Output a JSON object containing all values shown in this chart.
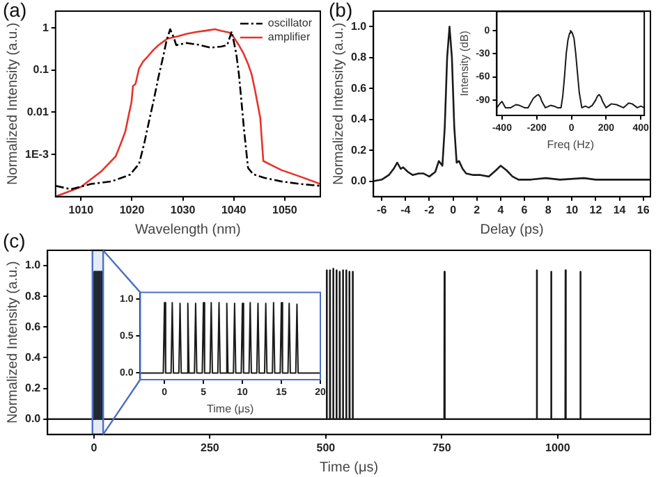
{
  "chart_data": [
    {
      "type": "line",
      "annotations": [
        "(a)"
      ],
      "xlabel": "Wavelength (nm)",
      "ylabel": "Normalized Intensity (a.u.)",
      "log": "y",
      "xlim": [
        1005,
        1057
      ],
      "xticks": [
        1010,
        1020,
        1030,
        1040,
        1050
      ],
      "ylim": [
        0.0001,
        2.5
      ],
      "yticks": [
        {
          "value": 0.001,
          "label": "1E-3"
        },
        0.01,
        0.1,
        1
      ],
      "legend": "top right",
      "marker": "none",
      "series": [
        {
          "name": "oscillator",
          "color": "#000000",
          "line_style": "dashed",
          "x": [
            1005,
            1008,
            1012,
            1016,
            1019.6,
            1021.4,
            1022.4,
            1023.3,
            1024.3,
            1025.2,
            1026.1,
            1026.8,
            1027.5,
            1028.2,
            1028.7,
            1030.7,
            1033,
            1035.4,
            1037.5,
            1038.7,
            1039.6,
            1040.5,
            1041,
            1041.4,
            1042,
            1042.8,
            1043.8,
            1046,
            1049.3,
            1053,
            1057
          ],
          "values": [
            0.00018,
            0.00015,
            0.0002,
            0.00023,
            0.00033,
            0.0006,
            0.0018,
            0.0057,
            0.02,
            0.068,
            0.2,
            0.5,
            0.93,
            0.6,
            0.39,
            0.44,
            0.4,
            0.34,
            0.36,
            0.39,
            0.82,
            0.24,
            0.08,
            0.025,
            0.004,
            0.00048,
            0.00034,
            0.00028,
            0.00023,
            0.0002,
            0.00018
          ]
        },
        {
          "name": "amplifier",
          "color": "#e8322a",
          "line_style": "solid",
          "x": [
            1005,
            1010,
            1014,
            1016.8,
            1017.8,
            1018.7,
            1019.4,
            1019.9,
            1020.2,
            1020.7,
            1021.4,
            1022.2,
            1023.1,
            1024.2,
            1025.2,
            1027,
            1029,
            1030.7,
            1032.6,
            1034.5,
            1036.3,
            1037.6,
            1039.1,
            1040,
            1041,
            1041.9,
            1042.8,
            1043.5,
            1044.2,
            1045.2,
            1045.8,
            1047.5,
            1049.3,
            1053,
            1057
          ],
          "values": [
            0.0001,
            0.00017,
            0.0004,
            0.0009,
            0.0018,
            0.0035,
            0.009,
            0.017,
            0.042,
            0.047,
            0.11,
            0.16,
            0.21,
            0.3,
            0.39,
            0.56,
            0.63,
            0.72,
            0.8,
            0.86,
            0.93,
            0.85,
            0.78,
            0.6,
            0.39,
            0.25,
            0.14,
            0.08,
            0.032,
            0.0074,
            0.0007,
            0.00055,
            0.00043,
            0.0003,
            0.0002
          ]
        }
      ]
    },
    {
      "type": "line",
      "annotations": [
        "(b)"
      ],
      "xlabel": "Delay (ps)",
      "ylabel": "Normalized Intensity (a.u.)",
      "xlim": [
        -6.7,
        16.6
      ],
      "xticks": [
        -6,
        -4,
        -2,
        0,
        2,
        4,
        6,
        8,
        10,
        12,
        14,
        16
      ],
      "ylim": [
        -0.1,
        1.1
      ],
      "yticks": [
        {
          "value": 0,
          "label": "0.0"
        },
        0.2,
        0.4,
        0.6,
        0.8,
        {
          "value": 1,
          "label": "1.0"
        }
      ],
      "marker": "none",
      "series": [
        {
          "color": "#1a1a1a",
          "line_style": "solid",
          "x": [
            -6.7,
            -6,
            -5.4,
            -5,
            -4.7,
            -4.4,
            -4.2,
            -3.8,
            -3.4,
            -2.9,
            -2.5,
            -2,
            -1.5,
            -1.2,
            -0.9,
            -0.7,
            -0.5,
            -0.3,
            -0.1,
            0.1,
            0.3,
            0.5,
            0.8,
            1.1,
            1.7,
            2.3,
            3,
            3.6,
            4,
            4.5,
            5,
            5.5,
            6.5,
            7.8,
            9,
            11,
            12,
            14,
            16.6
          ],
          "values": [
            0.0,
            0.01,
            0.04,
            0.08,
            0.12,
            0.08,
            0.09,
            0.06,
            0.04,
            0.05,
            0.05,
            0.03,
            0.06,
            0.13,
            0.1,
            0.35,
            0.8,
            1,
            0.8,
            0.35,
            0.12,
            0.13,
            0.08,
            0.05,
            0.04,
            0.04,
            0.03,
            0.07,
            0.1,
            0.07,
            0.03,
            0.01,
            0.01,
            0.02,
            0.01,
            0.02,
            0.01,
            0.01,
            0.01
          ]
        }
      ]
    },
    {
      "type": "line",
      "xlabel": "Freq (Hz)",
      "ylabel": "Intensity (dB)",
      "xlim": [
        -430,
        420
      ],
      "xticks": [
        -400,
        -200,
        0,
        200,
        400
      ],
      "ylim": [
        -110,
        25
      ],
      "yticks": [
        0,
        -30,
        -60,
        -90
      ],
      "marker": "none",
      "series": [
        {
          "color": "#1a1a1a",
          "line_style": "solid",
          "x": [
            -430,
            -410,
            -400,
            -380,
            -350,
            -320,
            -300,
            -270,
            -250,
            -220,
            -200,
            -190,
            -180,
            -170,
            -150,
            -120,
            -100,
            -80,
            -60,
            -50,
            -40,
            -30,
            -20,
            -10,
            -5,
            5,
            15,
            25,
            35,
            45,
            60,
            80,
            100,
            120,
            140,
            150,
            160,
            170,
            180,
            200,
            230,
            260,
            300,
            330,
            350,
            380,
            400,
            420
          ],
          "values": [
            -100,
            -94,
            -92,
            -100,
            -100,
            -96,
            -97,
            -100,
            -100,
            -88,
            -84,
            -83,
            -86,
            -92,
            -100,
            -97,
            -98,
            -100,
            -100,
            -85,
            -60,
            -30,
            -12,
            -3,
            0,
            -3,
            -10,
            -30,
            -55,
            -80,
            -100,
            -98,
            -100,
            -97,
            -90,
            -85,
            -83,
            -86,
            -92,
            -100,
            -95,
            -96,
            -100,
            -94,
            -95,
            -100,
            -98,
            -100
          ]
        }
      ]
    },
    {
      "type": "line",
      "annotations": [
        "(c)"
      ],
      "xlabel": "Time (μs)",
      "ylabel": "Normalized Intensity (a.u.)",
      "xlim": [
        -100,
        1200
      ],
      "xticks": [
        0,
        250,
        500,
        750,
        1000
      ],
      "bands": [
        {
          "axis": "x",
          "from": -3.1,
          "to": 20,
          "color": "#4a6fc4"
        }
      ],
      "ylim": [
        -0.1,
        1.1
      ],
      "yticks": [
        {
          "value": 0,
          "label": "0.0"
        },
        0.2,
        0.4,
        0.6,
        0.8,
        {
          "value": 1,
          "label": "1.0"
        }
      ],
      "marker": "none",
      "series": [
        {
          "color": "#1a1a1a",
          "line_style": "solid",
          "x": [
            -100,
            -0.4,
            0,
            0.4,
            0.6,
            1,
            1.4,
            1.6,
            2,
            2.4,
            2.6,
            3,
            3.4,
            3.6,
            4,
            4.4,
            4.6,
            5,
            5.4,
            5.6,
            6,
            6.4,
            6.6,
            7,
            7.4,
            7.6,
            8,
            8.4,
            8.6,
            9,
            9.4,
            9.6,
            10,
            10.4,
            10.6,
            11,
            11.4,
            11.6,
            12,
            12.4,
            12.6,
            13,
            13.4,
            13.6,
            14,
            14.4,
            14.6,
            15,
            15.4,
            15.6,
            16,
            16.4,
            16.6,
            17,
            17.4,
            501.5,
            502,
            502.5,
            508.5,
            509,
            509.5,
            515.5,
            516,
            516.5,
            522.5,
            523,
            523.5,
            529.5,
            530,
            530.5,
            536.5,
            537,
            537.5,
            543.5,
            544,
            544.5,
            550.5,
            551,
            551.5,
            557.5,
            558,
            558.5,
            755.5,
            756,
            756.5,
            954.5,
            955,
            955.5,
            985.5,
            986,
            986.5,
            1016.5,
            1017,
            1017.5,
            1048.5,
            1049,
            1049.5,
            1200
          ],
          "values": [
            0,
            0,
            0.96,
            0,
            0,
            0.96,
            0,
            0,
            0.96,
            0,
            0,
            0.96,
            0,
            0,
            0.96,
            0,
            0,
            0.96,
            0,
            0,
            0.96,
            0,
            0,
            0.96,
            0,
            0,
            0.96,
            0,
            0,
            0.96,
            0,
            0,
            0.96,
            0,
            0,
            0.96,
            0,
            0,
            0.96,
            0,
            0,
            0.96,
            0,
            0,
            0.96,
            0,
            0,
            0.96,
            0,
            0,
            0.96,
            0,
            0,
            0.96,
            0,
            0,
            0.97,
            0,
            0,
            0.97,
            0,
            0,
            0.98,
            0,
            0,
            0.97,
            0,
            0,
            0.96,
            0,
            0,
            0.97,
            0,
            0,
            0.97,
            0,
            0,
            0.96,
            0,
            0,
            0.96,
            0,
            0,
            0.96,
            0,
            0,
            0.97,
            0,
            0,
            0.96,
            0,
            0,
            0.97,
            0,
            0,
            0.96,
            0,
            0
          ]
        }
      ]
    },
    {
      "type": "line",
      "xlabel": "Time (μs)",
      "xlim": [
        -3.1,
        20
      ],
      "xticks": [
        0,
        5,
        10,
        15,
        20
      ],
      "ylim": [
        -0.09,
        1.09
      ],
      "yticks": [
        {
          "value": 0,
          "label": "0.0"
        },
        0.5,
        {
          "value": 1,
          "label": "1.0"
        }
      ],
      "marker": "none",
      "series": [
        {
          "color": "#1a1a1a",
          "line_style": "solid",
          "x": [
            -3.1,
            -0.15,
            0,
            0.15,
            0.85,
            1,
            1.15,
            1.85,
            2,
            2.15,
            2.85,
            3,
            3.15,
            3.85,
            4,
            4.15,
            4.85,
            5,
            5.15,
            5.85,
            6,
            6.15,
            6.85,
            7,
            7.15,
            7.85,
            8,
            8.15,
            8.85,
            9,
            9.15,
            9.85,
            10,
            10.15,
            10.85,
            11,
            11.15,
            11.85,
            12,
            12.15,
            12.85,
            13,
            13.15,
            13.85,
            14,
            14.15,
            14.85,
            15,
            15.15,
            15.85,
            16,
            16.15,
            16.85,
            17,
            17.15,
            20
          ],
          "values": [
            0,
            0,
            0.95,
            0,
            0,
            0.95,
            0,
            0,
            0.94,
            0,
            0,
            0.94,
            0,
            0,
            0.94,
            0,
            0,
            0.95,
            0,
            0,
            0.95,
            0,
            0,
            0.95,
            0,
            0,
            0.94,
            0,
            0,
            0.94,
            0,
            0,
            0.94,
            0,
            0,
            0.95,
            0,
            0,
            0.94,
            0,
            0,
            0.94,
            0,
            0,
            0.95,
            0,
            0,
            0.95,
            0,
            0,
            0.94,
            0,
            0,
            0.93,
            0,
            0
          ]
        }
      ]
    }
  ]
}
